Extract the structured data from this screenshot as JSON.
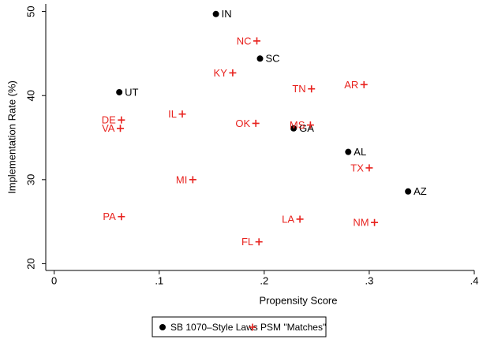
{
  "chart_data": {
    "type": "scatter",
    "x_label": "Propensity Score",
    "y_label": "Implementation Rate (%)",
    "xlim": [
      -0.008,
      0.4
    ],
    "ylim": [
      19.2,
      50.9
    ],
    "xticks": [
      0,
      {
        "value": 0.1,
        "label": ".1"
      },
      {
        "value": 0.2,
        "label": ".2"
      },
      {
        "value": 0.3,
        "label": ".3"
      },
      {
        "value": 0.4,
        "label": ".4"
      }
    ],
    "yticks": [
      20,
      30,
      40,
      50
    ],
    "series": [
      {
        "name": "SB 1070–Style Laws",
        "color": "#000000",
        "marker": "circle",
        "labels": [
          "IN",
          "SC",
          "UT",
          "GA",
          "AL",
          "AZ"
        ],
        "x": [
          0.154,
          0.196,
          0.062,
          0.228,
          0.28,
          0.337
        ],
        "values": [
          49.7,
          44.4,
          40.4,
          36.1,
          33.3,
          28.6
        ]
      },
      {
        "name": "PSM \"Matches\"",
        "color": "#e8231f",
        "marker": "plus",
        "labels": [
          "NC",
          "KY",
          "TN",
          "AR",
          "IL",
          "DE",
          "VA",
          "OK",
          "MS",
          "TX",
          "MI",
          "PA",
          "LA",
          "NM",
          "FL"
        ],
        "x": [
          0.193,
          0.17,
          0.245,
          0.295,
          0.122,
          0.064,
          0.063,
          0.192,
          0.244,
          0.3,
          0.132,
          0.064,
          0.234,
          0.305,
          0.195
        ],
        "values": [
          46.5,
          42.7,
          40.8,
          41.3,
          37.8,
          37.1,
          36.1,
          36.7,
          36.5,
          31.4,
          30.0,
          25.6,
          25.3,
          24.9,
          22.6
        ]
      }
    ]
  }
}
